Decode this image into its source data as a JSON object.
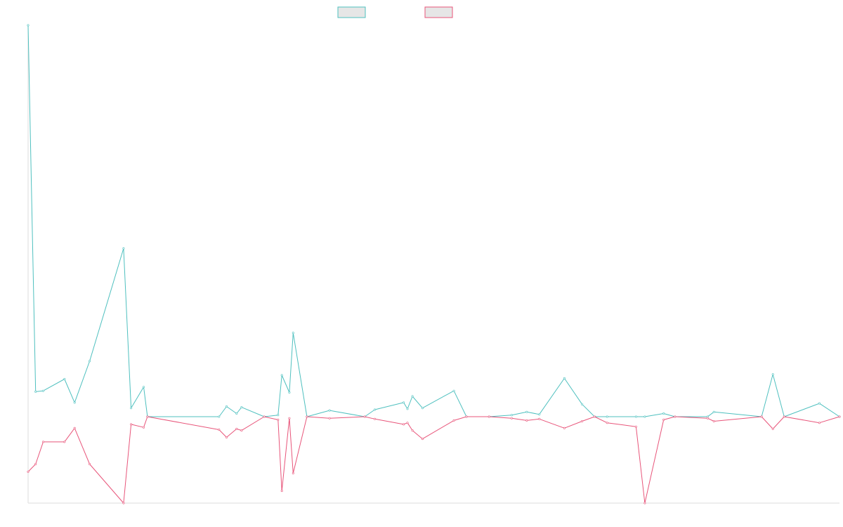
{
  "chart_data": {
    "type": "line",
    "title": "",
    "xlabel": "",
    "ylabel": "",
    "ylim": [
      -1.13,
      5.0
    ],
    "legend": {
      "placement": "top-center"
    },
    "grid": false,
    "series": [
      {
        "color": "#4fc0bf",
        "fill": "#e6e6e6",
        "points": [
          [
            0,
            5.0
          ],
          [
            6,
            0.32
          ],
          [
            12,
            0.33
          ],
          [
            29,
            0.48
          ],
          [
            37,
            0.18
          ],
          [
            49,
            0.71
          ],
          [
            76,
            2.15
          ],
          [
            82,
            0.11
          ],
          [
            92,
            0.38
          ],
          [
            95,
            0.0
          ],
          [
            152,
            0.0
          ],
          [
            158,
            0.13
          ],
          [
            166,
            0.04
          ],
          [
            170,
            0.12
          ],
          [
            188,
            0.0
          ],
          [
            199,
            0.02
          ],
          [
            202,
            0.53
          ],
          [
            208,
            0.31
          ],
          [
            211,
            1.07
          ],
          [
            222,
            0.0
          ],
          [
            240,
            0.08
          ],
          [
            268,
            0.0
          ],
          [
            276,
            0.09
          ],
          [
            299,
            0.18
          ],
          [
            302,
            0.1
          ],
          [
            306,
            0.26
          ],
          [
            314,
            0.11
          ],
          [
            339,
            0.33
          ],
          [
            349,
            0.0
          ],
          [
            367,
            0.0
          ],
          [
            385,
            0.02
          ],
          [
            397,
            0.06
          ],
          [
            407,
            0.03
          ],
          [
            427,
            0.49
          ],
          [
            441,
            0.16
          ],
          [
            451,
            0.0
          ],
          [
            461,
            0.0
          ],
          [
            484,
            0.0
          ],
          [
            491,
            0.0
          ],
          [
            506,
            0.04
          ],
          [
            515,
            0.0
          ],
          [
            541,
            0.0
          ],
          [
            546,
            0.06
          ],
          [
            584,
            0.0
          ],
          [
            593,
            0.54
          ],
          [
            602,
            0.0
          ],
          [
            630,
            0.17
          ],
          [
            646,
            0.0
          ]
        ]
      },
      {
        "color": "#e8557a",
        "fill": "#e6e6e6",
        "points": [
          [
            0,
            -0.72
          ],
          [
            6,
            -0.62
          ],
          [
            12,
            -0.33
          ],
          [
            29,
            -0.33
          ],
          [
            37,
            -0.15
          ],
          [
            49,
            -0.62
          ],
          [
            76,
            -1.13
          ],
          [
            82,
            -0.1
          ],
          [
            92,
            -0.14
          ],
          [
            95,
            0.0
          ],
          [
            152,
            -0.17
          ],
          [
            158,
            -0.27
          ],
          [
            166,
            -0.16
          ],
          [
            170,
            -0.18
          ],
          [
            188,
            0.0
          ],
          [
            199,
            -0.04
          ],
          [
            202,
            -0.97
          ],
          [
            208,
            -0.02
          ],
          [
            211,
            -0.74
          ],
          [
            222,
            0.0
          ],
          [
            240,
            -0.02
          ],
          [
            268,
            0.0
          ],
          [
            276,
            -0.03
          ],
          [
            299,
            -0.1
          ],
          [
            302,
            -0.08
          ],
          [
            306,
            -0.18
          ],
          [
            314,
            -0.29
          ],
          [
            339,
            -0.05
          ],
          [
            349,
            0.0
          ],
          [
            367,
            0.0
          ],
          [
            385,
            -0.02
          ],
          [
            397,
            -0.05
          ],
          [
            407,
            -0.03
          ],
          [
            427,
            -0.15
          ],
          [
            441,
            -0.06
          ],
          [
            451,
            0.0
          ],
          [
            461,
            -0.08
          ],
          [
            484,
            -0.13
          ],
          [
            491,
            -1.13
          ],
          [
            506,
            -0.04
          ],
          [
            515,
            0.0
          ],
          [
            541,
            -0.02
          ],
          [
            546,
            -0.06
          ],
          [
            584,
            0.0
          ],
          [
            593,
            -0.16
          ],
          [
            602,
            0.0
          ],
          [
            630,
            -0.08
          ],
          [
            646,
            0.0
          ]
        ]
      }
    ]
  }
}
